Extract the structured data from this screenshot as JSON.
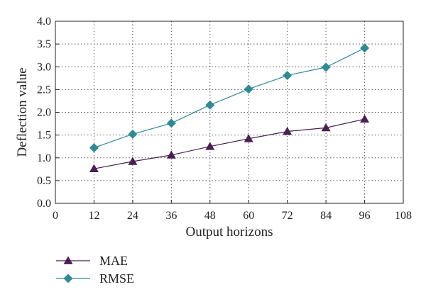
{
  "chart_data": {
    "type": "line",
    "title": "",
    "xlabel": "Output horizons",
    "ylabel": "Deflection value",
    "x": [
      12,
      24,
      36,
      48,
      60,
      72,
      84,
      96
    ],
    "xlim": [
      0,
      108
    ],
    "ylim": [
      0.0,
      4.0
    ],
    "xticks": [
      "0",
      "12",
      "24",
      "36",
      "48",
      "60",
      "72",
      "84",
      "96",
      "108"
    ],
    "yticks": [
      "0.0",
      "0.5",
      "1.0",
      "1.5",
      "2.0",
      "2.5",
      "3.0",
      "3.5",
      "4.0"
    ],
    "grid": true,
    "legend_position": "bottom-left",
    "series": [
      {
        "name": "MAE",
        "values": [
          0.76,
          0.92,
          1.06,
          1.25,
          1.42,
          1.58,
          1.66,
          1.85
        ],
        "color": "#4a1f52",
        "marker": "triangle"
      },
      {
        "name": "RMSE",
        "values": [
          1.22,
          1.52,
          1.76,
          2.16,
          2.51,
          2.81,
          2.99,
          3.41
        ],
        "color": "#2e8a94",
        "marker": "diamond"
      }
    ]
  }
}
